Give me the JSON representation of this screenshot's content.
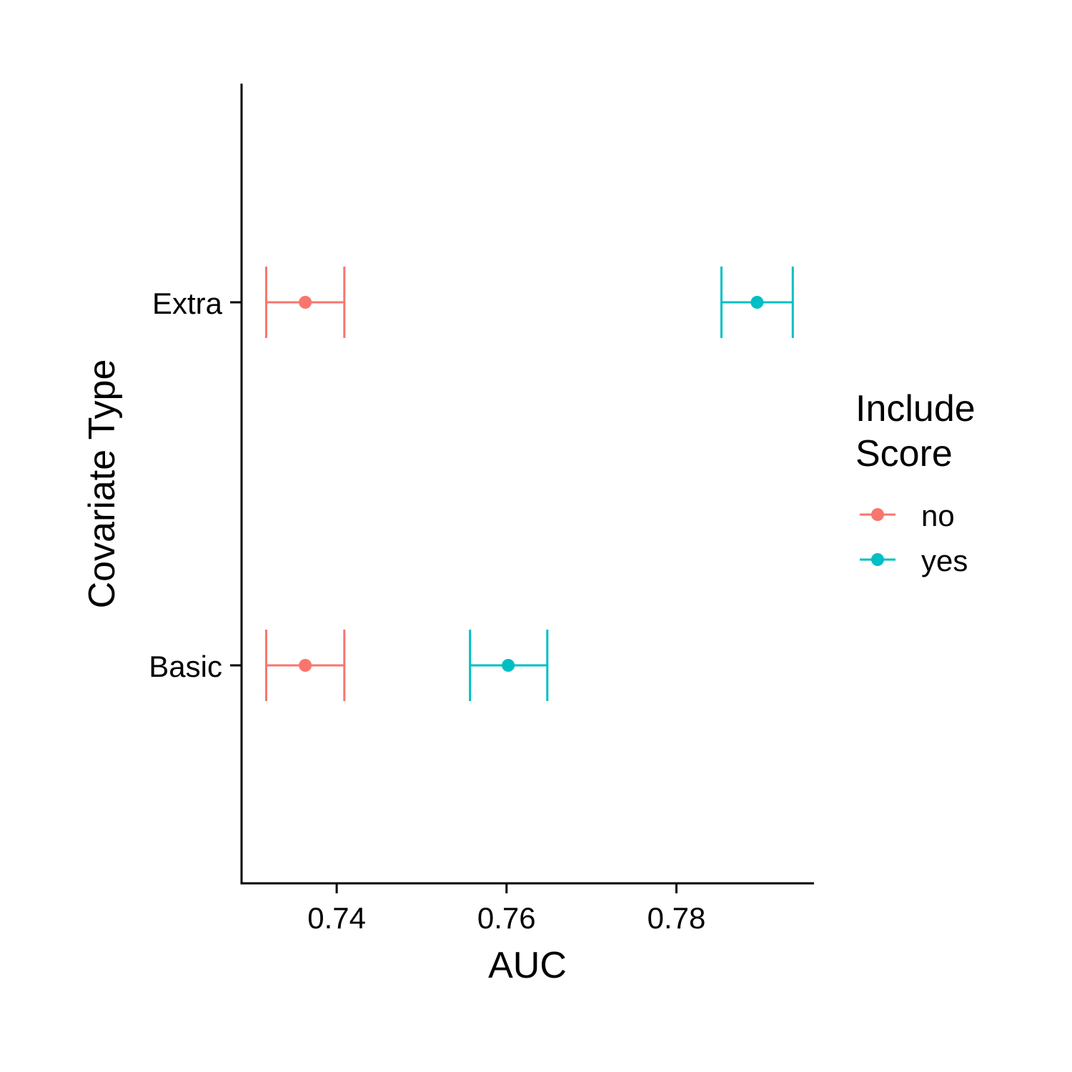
{
  "chart_data": {
    "type": "scatter",
    "subtype": "point-errorbar",
    "xlabel": "AUC",
    "ylabel": "Covariate Type",
    "categories": [
      "Basic",
      "Extra"
    ],
    "x_ticks": [
      "0.74",
      "0.76",
      "0.78"
    ],
    "xlim": [
      0.7288,
      0.7962
    ],
    "legend": {
      "title": "Include\nScore",
      "title_lines": [
        "Include",
        "Score"
      ],
      "position": "right"
    },
    "series": [
      {
        "name": "no",
        "color": "#F8766D",
        "points": [
          {
            "category": "Basic",
            "x": 0.7363,
            "xmin": 0.7317,
            "xmax": 0.7409
          },
          {
            "category": "Extra",
            "x": 0.7363,
            "xmin": 0.7317,
            "xmax": 0.7409
          }
        ]
      },
      {
        "name": "yes",
        "color": "#00BFC4",
        "points": [
          {
            "category": "Basic",
            "x": 0.7602,
            "xmin": 0.7557,
            "xmax": 0.7648
          },
          {
            "category": "Extra",
            "x": 0.7895,
            "xmin": 0.7853,
            "xmax": 0.7937
          }
        ]
      }
    ]
  }
}
